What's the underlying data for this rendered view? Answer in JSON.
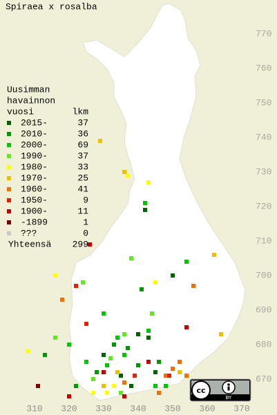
{
  "chart_data": {
    "type": "grid-map",
    "title": "Spiraea x rosalba",
    "legend_title": [
      "Uusimman",
      "havainnon",
      "vuosi"
    ],
    "count_header": "lkm",
    "total_label": "Yhteensä",
    "total": 299,
    "xlim": [
      300,
      380.2
    ],
    "ylim": [
      659.6,
      779.8
    ],
    "xticks": [
      310,
      320,
      330,
      340,
      350,
      360,
      370
    ],
    "yticks": [
      670,
      680,
      690,
      700,
      710,
      720,
      730,
      740,
      750,
      760,
      770
    ],
    "series": [
      {
        "name": "2015-",
        "color": "#006400",
        "count": 37,
        "x": [
          340,
          343,
          335,
          338,
          330,
          345,
          350,
          342
        ],
        "y": [
          683,
          682,
          671,
          668,
          677,
          672,
          700,
          719
        ]
      },
      {
        "name": "2010-",
        "color": "#009a00",
        "count": 36,
        "x": [
          333,
          337,
          340,
          328,
          346,
          322,
          313,
          341
        ],
        "y": [
          680,
          679,
          674,
          672,
          675,
          668,
          677,
          696
        ]
      },
      {
        "name": "2000-",
        "color": "#00c800",
        "count": 69,
        "x": [
          334,
          336,
          331,
          339,
          325,
          345,
          343,
          348,
          320,
          342,
          354,
          330
        ],
        "y": [
          682,
          677,
          674,
          671,
          675,
          668,
          684,
          668,
          680,
          721,
          704,
          689
        ]
      },
      {
        "name": "1990-",
        "color": "#60e820",
        "count": 37,
        "x": [
          332,
          327,
          335,
          344,
          316,
          336,
          324,
          338
        ],
        "y": [
          676,
          670,
          666,
          689,
          682,
          683,
          698,
          705
        ]
      },
      {
        "name": "1980-",
        "color": "#ffff00",
        "count": 33,
        "x": [
          333,
          331,
          327,
          316,
          345,
          308,
          337,
          343
        ],
        "y": [
          668,
          666,
          666,
          700,
          698,
          678,
          729,
          727
        ]
      },
      {
        "name": "1970-",
        "color": "#f0c000",
        "count": 25,
        "x": [
          330,
          334,
          352,
          329,
          364,
          336,
          362
        ],
        "y": [
          668,
          672,
          672,
          739,
          683,
          730,
          706
        ]
      },
      {
        "name": "1960-",
        "color": "#f07000",
        "count": 41,
        "x": [
          348,
          350,
          352,
          336,
          318,
          356,
          354,
          346
        ],
        "y": [
          671,
          673,
          675,
          669,
          693,
          697,
          671,
          666
        ]
      },
      {
        "name": "1950-",
        "color": "#e82000",
        "count": 9,
        "x": [
          339,
          325,
          322,
          349
        ],
        "y": [
          671,
          686,
          697,
          671
        ]
      },
      {
        "name": "1900-",
        "color": "#c80000",
        "count": 11,
        "x": [
          320,
          330,
          336,
          343,
          326,
          354
        ],
        "y": [
          665,
          672,
          665,
          675,
          709,
          685
        ]
      },
      {
        "name": "-1899",
        "color": "#800000",
        "count": 1,
        "x": [
          311
        ],
        "y": [
          668
        ]
      },
      {
        "name": "???",
        "color": "#c8c8c8",
        "count": 0,
        "x": [],
        "y": []
      }
    ]
  }
}
